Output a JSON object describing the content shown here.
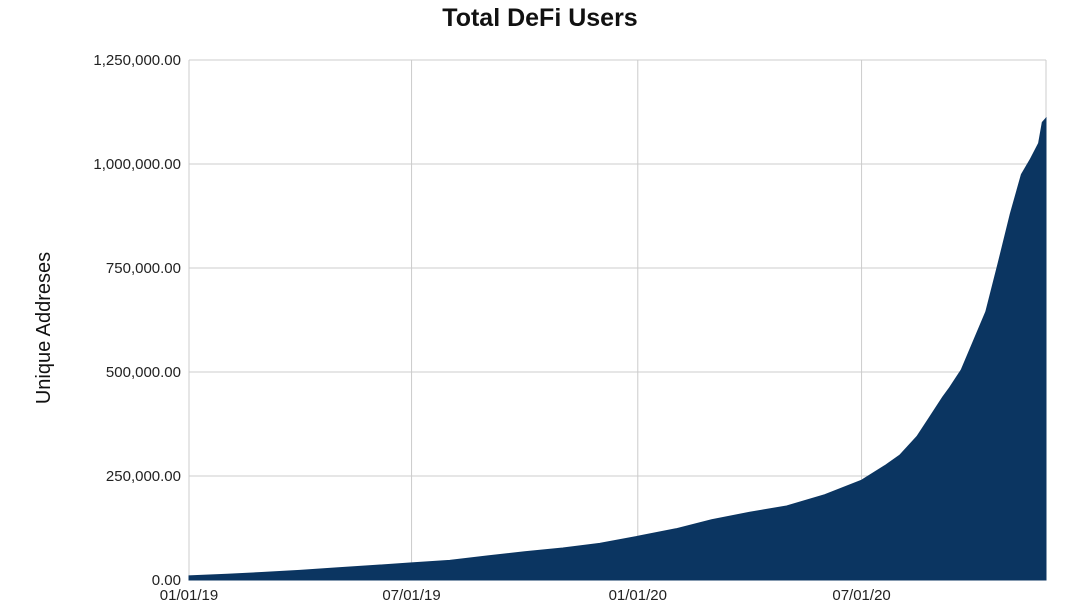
{
  "chart_data": {
    "type": "area",
    "title": "Total DeFi Users",
    "xlabel": "",
    "ylabel": "Unique Addreses",
    "ylim": [
      0,
      1250000
    ],
    "xlim": [
      "2019-01-01",
      "2020-11-28"
    ],
    "grid": true,
    "legend": "none",
    "y_ticks": [
      {
        "value": 0,
        "label": "0.00"
      },
      {
        "value": 250000,
        "label": "250,000.00"
      },
      {
        "value": 500000,
        "label": "500,000.00"
      },
      {
        "value": 750000,
        "label": "750,000.00"
      },
      {
        "value": 1000000,
        "label": "1,000,000.00"
      },
      {
        "value": 1250000,
        "label": "1,250,000.00"
      }
    ],
    "x_ticks": [
      {
        "date": "2019-01-01",
        "label": "01/01/19"
      },
      {
        "date": "2019-07-01",
        "label": "07/01/19"
      },
      {
        "date": "2020-01-01",
        "label": "01/01/20"
      },
      {
        "date": "2020-07-01",
        "label": "07/01/20"
      }
    ],
    "series": [
      {
        "color": "#0b3561",
        "points": [
          [
            "2019-01-01",
            10000
          ],
          [
            "2019-02-01",
            14000
          ],
          [
            "2019-03-01",
            18000
          ],
          [
            "2019-04-01",
            23000
          ],
          [
            "2019-05-01",
            29000
          ],
          [
            "2019-06-01",
            35000
          ],
          [
            "2019-07-01",
            41000
          ],
          [
            "2019-08-01",
            47000
          ],
          [
            "2019-09-01",
            58000
          ],
          [
            "2019-10-01",
            68000
          ],
          [
            "2019-11-01",
            77000
          ],
          [
            "2019-12-01",
            88000
          ],
          [
            "2020-01-01",
            105000
          ],
          [
            "2020-02-01",
            123000
          ],
          [
            "2020-03-01",
            145000
          ],
          [
            "2020-04-01",
            163000
          ],
          [
            "2020-05-01",
            178000
          ],
          [
            "2020-06-01",
            205000
          ],
          [
            "2020-07-01",
            240000
          ],
          [
            "2020-07-20",
            275000
          ],
          [
            "2020-08-01",
            300000
          ],
          [
            "2020-08-15",
            345000
          ],
          [
            "2020-08-25",
            390000
          ],
          [
            "2020-09-05",
            440000
          ],
          [
            "2020-09-10",
            460000
          ],
          [
            "2020-09-20",
            505000
          ],
          [
            "2020-09-30",
            575000
          ],
          [
            "2020-10-10",
            645000
          ],
          [
            "2020-10-20",
            760000
          ],
          [
            "2020-10-30",
            880000
          ],
          [
            "2020-11-08",
            975000
          ],
          [
            "2020-11-15",
            1010000
          ],
          [
            "2020-11-22",
            1050000
          ],
          [
            "2020-11-25",
            1100000
          ],
          [
            "2020-11-28",
            1110000
          ]
        ]
      }
    ]
  }
}
